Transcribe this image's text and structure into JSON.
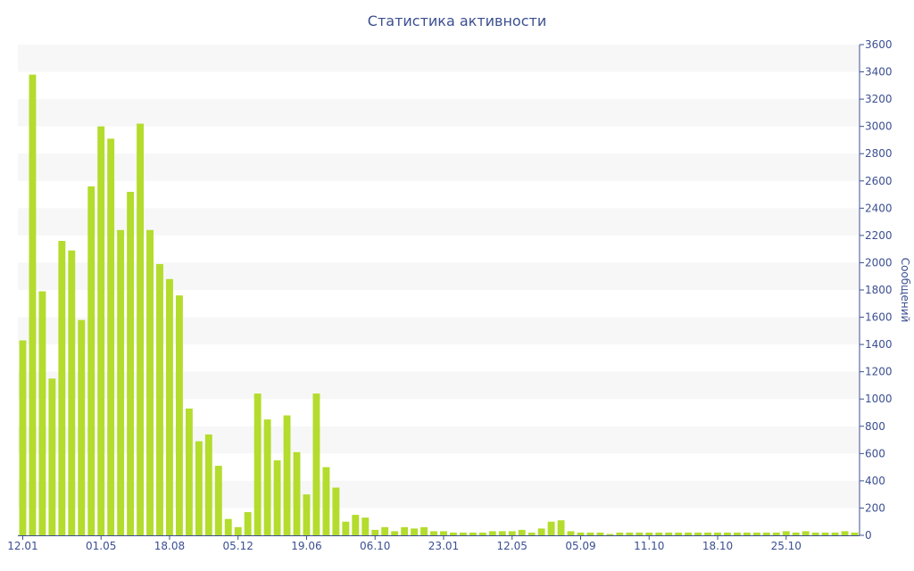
{
  "chart_data": {
    "type": "bar",
    "title": "Статистика активности",
    "ylabel": "Сообщений",
    "xlabel": "",
    "ylim": [
      0,
      3600
    ],
    "y_ticks": [
      0,
      200,
      400,
      600,
      800,
      1000,
      1200,
      1400,
      1600,
      1800,
      2000,
      2200,
      2400,
      2600,
      2800,
      3000,
      3200,
      3400,
      3600
    ],
    "y_axis_side": "right",
    "grid": "alternating horizontal bands",
    "x_tick_labels": [
      {
        "label": "12.01",
        "bar_index": 0
      },
      {
        "label": "01.05",
        "bar_index": 8
      },
      {
        "label": "18.08",
        "bar_index": 15
      },
      {
        "label": "05.12",
        "bar_index": 22
      },
      {
        "label": "19.06",
        "bar_index": 29
      },
      {
        "label": "06.10",
        "bar_index": 36
      },
      {
        "label": "23.01",
        "bar_index": 43
      },
      {
        "label": "12.05",
        "bar_index": 50
      },
      {
        "label": "05.09",
        "bar_index": 57
      },
      {
        "label": "11.10",
        "bar_index": 64
      },
      {
        "label": "18.10",
        "bar_index": 71
      },
      {
        "label": "25.10",
        "bar_index": 78
      }
    ],
    "values": [
      1430,
      3380,
      1790,
      1150,
      2160,
      2090,
      1580,
      2560,
      3000,
      2910,
      2240,
      2520,
      3020,
      2240,
      1990,
      1880,
      1760,
      930,
      690,
      740,
      510,
      120,
      60,
      170,
      1040,
      850,
      550,
      880,
      610,
      300,
      1040,
      500,
      350,
      100,
      150,
      130,
      40,
      60,
      30,
      60,
      50,
      60,
      30,
      30,
      20,
      20,
      20,
      20,
      30,
      30,
      30,
      40,
      20,
      50,
      100,
      110,
      30,
      20,
      20,
      20,
      10,
      20,
      20,
      20,
      20,
      20,
      20,
      20,
      20,
      20,
      20,
      20,
      20,
      20,
      20,
      20,
      20,
      20,
      30,
      20,
      30,
      20,
      20,
      20,
      30,
      20
    ],
    "colors": {
      "bar": "#b3dc2d",
      "text": "#3b4f91",
      "band": "#f7f7f7",
      "axis": "#3b4f91"
    }
  }
}
